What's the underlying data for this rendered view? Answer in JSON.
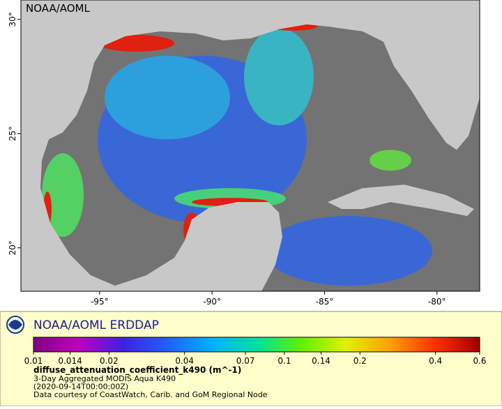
{
  "map": {
    "watermark": "NOAA/AOML",
    "xlim": [
      -98.5,
      -78.1
    ],
    "ylim": [
      18.1,
      30.85
    ],
    "xticks": [
      {
        "value": -95,
        "label": "-95°"
      },
      {
        "value": -90,
        "label": "-90°"
      },
      {
        "value": -85,
        "label": "-85°"
      },
      {
        "value": -80,
        "label": "-80°"
      }
    ],
    "yticks": [
      {
        "value": 20,
        "label": "20°"
      },
      {
        "value": 25,
        "label": "25°"
      },
      {
        "value": 30,
        "label": "30°"
      }
    ]
  },
  "legend": {
    "title": "NOAA/AOML ERDDAP",
    "colorbar": {
      "scale": "log",
      "lim": [
        0.01,
        0.6
      ],
      "ticks": [
        0.01,
        0.014,
        0.02,
        0.04,
        0.07,
        0.1,
        0.14,
        0.2,
        0.4,
        0.6
      ],
      "colors": [
        "#800080",
        "#c000c0",
        "#4020e0",
        "#2060ff",
        "#00b0ff",
        "#00e0a0",
        "#60f000",
        "#e0f000",
        "#ffa000",
        "#ff3000",
        "#a00000"
      ]
    },
    "variable": "diffuse_attenuation_coefficient_k490 (m^-1)",
    "lines": [
      "3-Day Aggregated MODIS Aqua K490",
      "(2020-09-14T00:00:00Z)",
      "Data courtesy of CoastWatch, Carib. and GoM Regional Node"
    ]
  }
}
